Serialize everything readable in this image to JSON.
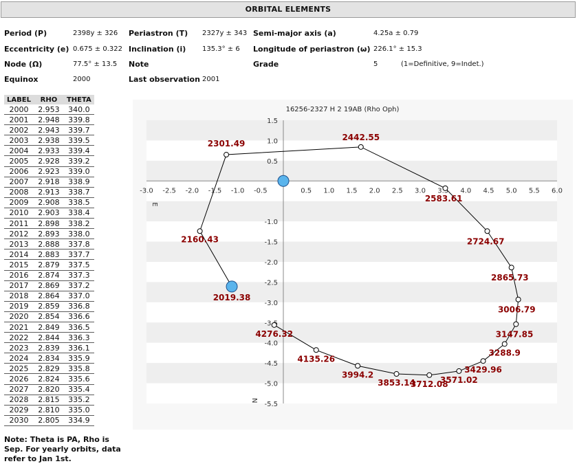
{
  "header": {
    "title": "ORBITAL ELEMENTS"
  },
  "elements": {
    "period_label": "Period (P)",
    "period_value": "2398y ± 326",
    "periastron_label": "Periastron (T)",
    "periastron_value": "2327y ± 343",
    "semimajor_label": "Semi-major axis (a)",
    "semimajor_value": "4.25a ± 0.79",
    "eccentricity_label": "Eccentricity (e)",
    "eccentricity_value": "0.675 ± 0.322",
    "inclination_label": "Inclination (i)",
    "inclination_value": "135.3° ± 6",
    "long_periastron_label": "Longitude of periastron (ω)",
    "long_periastron_value": "226.1° ± 15.3",
    "node_label": "Node (Ω)",
    "node_value": "77.5° ± 13.5",
    "note_label": "Note",
    "grade_label": "Grade",
    "grade_value": "5",
    "grade_hint": "(1=Definitive, 9=Indet.)",
    "equinox_label": "Equinox",
    "equinox_value": "2000",
    "last_obs_label": "Last observation",
    "last_obs_value": "2001"
  },
  "table": {
    "headers": [
      "LABEL",
      "RHO",
      "THETA"
    ],
    "rows": [
      [
        "2000",
        "2.953",
        "340.0"
      ],
      [
        "2001",
        "2.948",
        "339.8"
      ],
      [
        "2002",
        "2.943",
        "339.7"
      ],
      [
        "2003",
        "2.938",
        "339.5"
      ],
      [
        "2004",
        "2.933",
        "339.4"
      ],
      [
        "2005",
        "2.928",
        "339.2"
      ],
      [
        "2006",
        "2.923",
        "339.0"
      ],
      [
        "2007",
        "2.918",
        "338.9"
      ],
      [
        "2008",
        "2.913",
        "338.7"
      ],
      [
        "2009",
        "2.908",
        "338.5"
      ],
      [
        "2010",
        "2.903",
        "338.4"
      ],
      [
        "2011",
        "2.898",
        "338.2"
      ],
      [
        "2012",
        "2.893",
        "338.0"
      ],
      [
        "2013",
        "2.888",
        "337.8"
      ],
      [
        "2014",
        "2.883",
        "337.7"
      ],
      [
        "2015",
        "2.879",
        "337.5"
      ],
      [
        "2016",
        "2.874",
        "337.3"
      ],
      [
        "2017",
        "2.869",
        "337.2"
      ],
      [
        "2018",
        "2.864",
        "337.0"
      ],
      [
        "2019",
        "2.859",
        "336.8"
      ],
      [
        "2020",
        "2.854",
        "336.6"
      ],
      [
        "2021",
        "2.849",
        "336.5"
      ],
      [
        "2022",
        "2.844",
        "336.3"
      ],
      [
        "2023",
        "2.839",
        "336.1"
      ],
      [
        "2024",
        "2.834",
        "335.9"
      ],
      [
        "2025",
        "2.829",
        "335.8"
      ],
      [
        "2026",
        "2.824",
        "335.6"
      ],
      [
        "2027",
        "2.820",
        "335.4"
      ],
      [
        "2028",
        "2.815",
        "335.2"
      ],
      [
        "2029",
        "2.810",
        "335.0"
      ],
      [
        "2030",
        "2.805",
        "334.9"
      ]
    ]
  },
  "note": "Note: Theta is PA, Rho is Sep. For yearly orbits, data refer to Jan 1st.",
  "chart_data": {
    "type": "scatter",
    "title": "16256-2327 H 2  19AB (Rho Oph)",
    "xlim": [
      -3.0,
      6.0
    ],
    "ylim": [
      -5.5,
      1.5
    ],
    "x_ticks": [
      "-3.0",
      "-2.5",
      "-2.0",
      "-1.5",
      "-1.0",
      "-0.5",
      "0.5",
      "1.0",
      "1.5",
      "2.0",
      "2.5",
      "3.0",
      "3.5",
      "4.0",
      "4.5",
      "5.0",
      "5.5",
      "6.0"
    ],
    "y_ticks": [
      "1.5",
      "1.0",
      "0.5",
      "-1.0",
      "-1.5",
      "-2.0",
      "-2.5",
      "-3.0",
      "-3.5",
      "-4.0",
      "-4.5",
      "-5.0",
      "-5.5"
    ],
    "axis_e_label": "E",
    "axis_n_label": "N",
    "orbit_points": [
      {
        "label": "2019.38",
        "x": -1.13,
        "y": -2.61
      },
      {
        "label": "2160.43",
        "x": -1.83,
        "y": -1.24
      },
      {
        "label": "2301.49",
        "x": -1.25,
        "y": 0.65
      },
      {
        "label": "2442.55",
        "x": 1.7,
        "y": 0.84
      },
      {
        "label": "2583.61",
        "x": 3.55,
        "y": -0.18
      },
      {
        "label": "2724.67",
        "x": 4.47,
        "y": -1.24
      },
      {
        "label": "2865.73",
        "x": 5.0,
        "y": -2.14
      },
      {
        "label": "3006.79",
        "x": 5.15,
        "y": -2.93
      },
      {
        "label": "3147.85",
        "x": 5.1,
        "y": -3.54
      },
      {
        "label": "3288.9",
        "x": 4.85,
        "y": -4.03
      },
      {
        "label": "3429.96",
        "x": 4.38,
        "y": -4.45
      },
      {
        "label": "3571.02",
        "x": 3.85,
        "y": -4.7
      },
      {
        "label": "3712.08",
        "x": 3.2,
        "y": -4.8
      },
      {
        "label": "3853.14",
        "x": 2.48,
        "y": -4.77
      },
      {
        "label": "3994.2",
        "x": 1.63,
        "y": -4.57
      },
      {
        "label": "4135.26",
        "x": 0.72,
        "y": -4.18
      },
      {
        "label": "4276.32",
        "x": -0.2,
        "y": -3.56
      }
    ],
    "primary_star": {
      "x": 0.0,
      "y": 0.0
    },
    "current_position": {
      "x": -1.13,
      "y": -2.61
    },
    "colors": {
      "star": "#5ab4ec",
      "label": "#8b0000",
      "band": "#eeeeee",
      "line": "#000000"
    }
  }
}
